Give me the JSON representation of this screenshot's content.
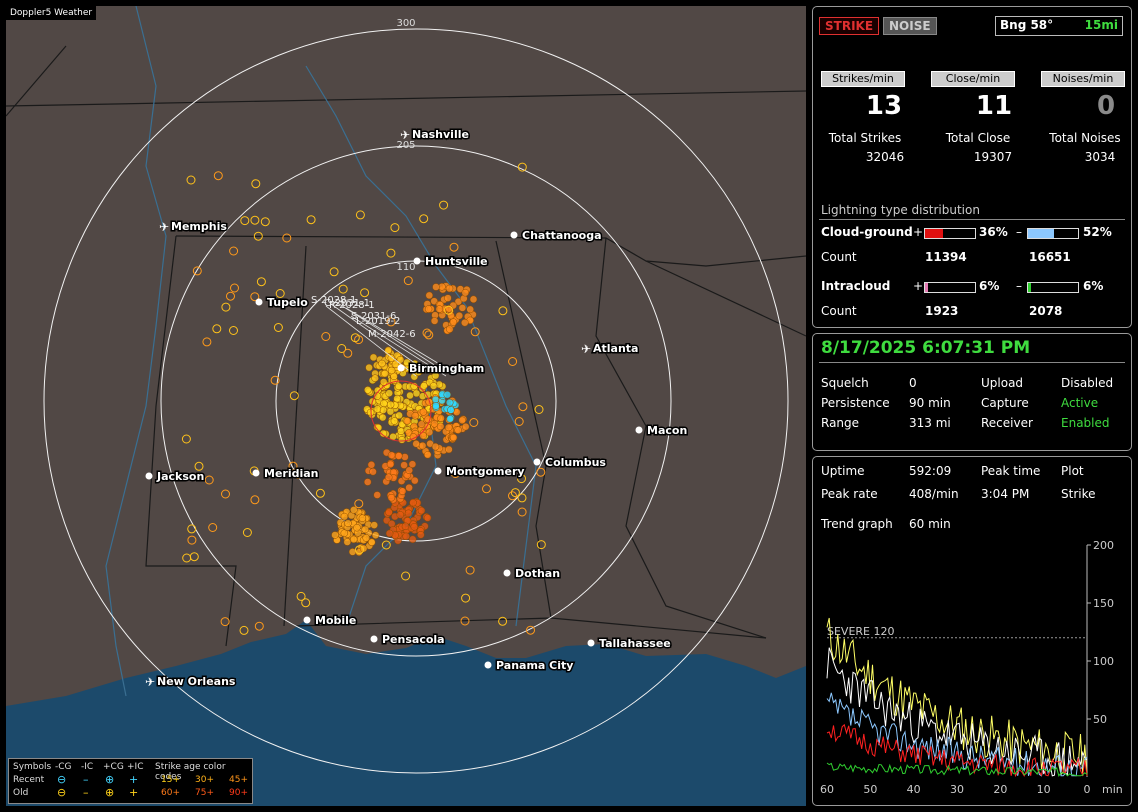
{
  "app_title": "Doppler5 Weather",
  "map": {
    "range_labels": [
      "300",
      "205",
      "110"
    ],
    "cities": [
      {
        "name": "Nashville",
        "icon": "airport-icon"
      },
      {
        "name": "Memphis",
        "icon": "airport-icon"
      },
      {
        "name": "Chattanooga",
        "icon": "city-dot"
      },
      {
        "name": "Huntsville",
        "icon": "city-dot"
      },
      {
        "name": "Tupelo",
        "icon": "city-dot"
      },
      {
        "name": "Atlanta",
        "icon": "airport-icon"
      },
      {
        "name": "Birmingham",
        "icon": "city-dot"
      },
      {
        "name": "Macon",
        "icon": "city-dot"
      },
      {
        "name": "Jackson",
        "icon": "city-dot"
      },
      {
        "name": "Meridian",
        "icon": "city-dot"
      },
      {
        "name": "Montgomery",
        "icon": "city-dot"
      },
      {
        "name": "Columbus",
        "icon": "city-dot"
      },
      {
        "name": "Dothan",
        "icon": "city-dot"
      },
      {
        "name": "Mobile",
        "icon": "city-dot"
      },
      {
        "name": "Pensacola",
        "icon": "city-dot"
      },
      {
        "name": "Tallahassee",
        "icon": "city-dot"
      },
      {
        "name": "Panama City",
        "icon": "city-dot"
      },
      {
        "name": "New Orleans",
        "icon": "airport-icon"
      }
    ],
    "track_labels": [
      "S-2028-1",
      "C-2031-1",
      "R-2028-1",
      "S-2031-6",
      "L-2019-2",
      "M-2042-6"
    ],
    "legend": {
      "symbols_label": "Symbols",
      "cols": [
        "-CG",
        "-IC",
        "+CG",
        "+IC"
      ],
      "age_label": "Strike age color codes",
      "recent_label": "Recent",
      "old_label": "Old",
      "recent_ages": [
        "15+",
        "30+",
        "45+"
      ],
      "old_ages": [
        "60+",
        "75+",
        "90+"
      ]
    }
  },
  "stats": {
    "strike_btn": "STRIKE",
    "noise_btn": "NOISE",
    "bearing": "Bng 58°",
    "distance": "15mi",
    "tabs": [
      "Strikes/min",
      "Close/min",
      "Noises/min"
    ],
    "rates": [
      "13",
      "11",
      "0"
    ],
    "total_labels": [
      "Total Strikes",
      "Total Close",
      "Total Noises"
    ],
    "totals": [
      "32046",
      "19307",
      "3034"
    ],
    "dist_title": "Lightning type distribution",
    "cloud_ground": {
      "label": "Cloud-ground",
      "pos_sign": "+",
      "pos_pct": "36%",
      "pos_fill": 0.36,
      "neg_sign": "–",
      "neg_pct": "52%",
      "neg_fill": 0.52,
      "count_label": "Count",
      "pos_count": "11394",
      "neg_count": "16651"
    },
    "intracloud": {
      "label": "Intracloud",
      "pos_sign": "+",
      "pos_pct": "6%",
      "pos_fill": 0.06,
      "neg_sign": "–",
      "neg_pct": "6%",
      "neg_fill": 0.06,
      "count_label": "Count",
      "pos_count": "1923",
      "neg_count": "2078"
    }
  },
  "status": {
    "datetime": "8/17/2025 6:07:31 PM",
    "rows": [
      {
        "k1": "Squelch",
        "v1": "0",
        "k2": "Upload",
        "v2": "Disabled",
        "v2_green": false
      },
      {
        "k1": "Persistence",
        "v1": "90 min",
        "k2": "Capture",
        "v2": "Active",
        "v2_green": true
      },
      {
        "k1": "Range",
        "v1": "313 mi",
        "k2": "Receiver",
        "v2": "Enabled",
        "v2_green": true
      }
    ]
  },
  "trend": {
    "uptime_label": "Uptime",
    "uptime": "592:09",
    "peak_time_label": "Peak time",
    "plot_label": "Plot",
    "peak_rate_label": "Peak rate",
    "peak_rate": "408/min",
    "peak_time": "3:04 PM",
    "plot_value": "Strike",
    "graph_label": "Trend graph",
    "graph_value": "60 min",
    "severe_label": "SEVERE 120",
    "y_ticks": [
      "200",
      "150",
      "100",
      "50"
    ],
    "x_ticks": [
      "60",
      "50",
      "40",
      "30",
      "20",
      "10",
      "0"
    ],
    "x_unit": "min"
  },
  "colors": {
    "land": "#514845",
    "water": "#1c4a6b",
    "strike_orange": "#ff8c1a",
    "strike_yellow": "#ffd21a",
    "green": "#3fdc3f",
    "strike_btn": "#e03030"
  }
}
